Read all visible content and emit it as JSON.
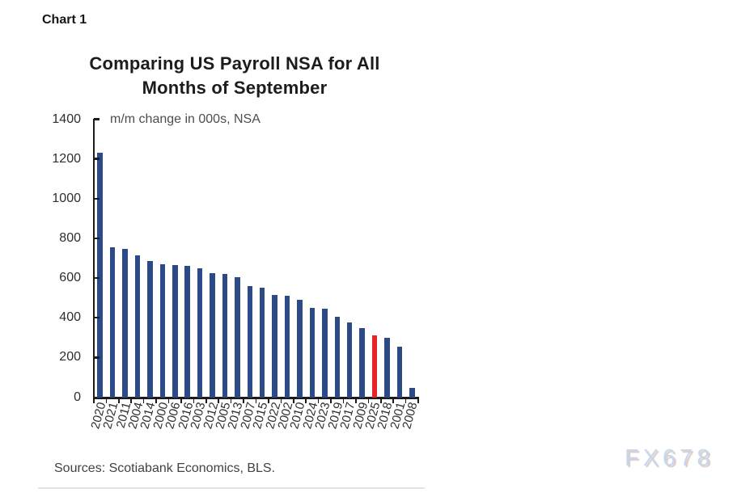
{
  "page": {
    "chart_label": "Chart 1",
    "watermark": "FX678"
  },
  "chart_data": {
    "type": "bar",
    "title": "Comparing US Payroll NSA for All Months of September",
    "title_lines": [
      "Comparing US Payroll NSA for All",
      "Months of September"
    ],
    "subtitle": "m/m change in 000s, NSA",
    "source": "Sources: Scotiabank Economics, BLS.",
    "categories": [
      "2020",
      "2021",
      "2011",
      "2004",
      "2014",
      "2000",
      "2006",
      "2016",
      "2003",
      "2012",
      "2005",
      "2013",
      "2007",
      "2015",
      "2022",
      "2002",
      "2010",
      "2024",
      "2023",
      "2019",
      "2017",
      "2009",
      "2025",
      "2018",
      "2001",
      "2008"
    ],
    "values": [
      1230,
      755,
      745,
      715,
      685,
      670,
      665,
      660,
      650,
      625,
      620,
      605,
      560,
      550,
      515,
      510,
      490,
      450,
      445,
      405,
      375,
      350,
      310,
      300,
      255,
      45
    ],
    "highlight_category": "2025",
    "bar_color": "#2b4a87",
    "highlight_color": "#e52528",
    "ylim": [
      0,
      1400
    ],
    "yticks": [
      0,
      200,
      400,
      600,
      800,
      1000,
      1200,
      1400
    ],
    "grid": false,
    "legend": false
  }
}
